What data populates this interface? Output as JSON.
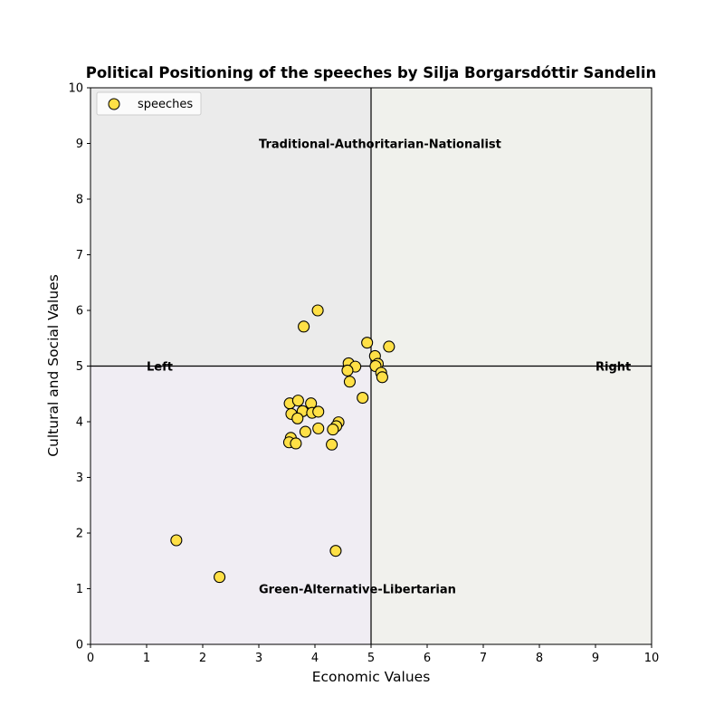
{
  "chart_data": {
    "type": "scatter",
    "title": "Political Positioning of the speeches by Silja Borgarsdóttir Sandelin",
    "xlabel": "Economic Values",
    "ylabel": "Cultural and Social Values",
    "xlim": [
      0,
      10
    ],
    "ylim": [
      0,
      10
    ],
    "xticks": [
      "0",
      "1",
      "2",
      "3",
      "4",
      "5",
      "6",
      "7",
      "8",
      "9",
      "10"
    ],
    "yticks": [
      "0",
      "1",
      "2",
      "3",
      "4",
      "5",
      "6",
      "7",
      "8",
      "9",
      "10"
    ],
    "grid": false,
    "legend_position": "upper-left",
    "quadrant_colors": {
      "top_left": "#ebebeb",
      "top_right": "#f0f1ec",
      "bottom_left": "#f0edf3",
      "bottom_right": "#f1f1ed"
    },
    "marker_color": "#ffe046",
    "marker_edge": "#000000",
    "annotations": [
      {
        "text": "Traditional-Authoritarian-Nationalist",
        "x": 3.0,
        "y": 9.0,
        "align": "left"
      },
      {
        "text": "Green-Alternative-Libertarian",
        "x": 3.0,
        "y": 1.0,
        "align": "left"
      },
      {
        "text": "Left",
        "x": 1.0,
        "y": 5.0,
        "align": "left"
      },
      {
        "text": "Right",
        "x": 9.0,
        "y": 5.0,
        "align": "left"
      }
    ],
    "series": [
      {
        "name": "speeches",
        "points": [
          [
            4.05,
            6.0
          ],
          [
            3.8,
            5.71
          ],
          [
            4.93,
            5.42
          ],
          [
            5.32,
            5.35
          ],
          [
            5.07,
            5.18
          ],
          [
            5.12,
            5.04
          ],
          [
            4.6,
            5.05
          ],
          [
            4.72,
            4.99
          ],
          [
            5.08,
            5.0
          ],
          [
            4.58,
            4.92
          ],
          [
            5.18,
            4.88
          ],
          [
            5.2,
            4.8
          ],
          [
            4.62,
            4.72
          ],
          [
            4.85,
            4.43
          ],
          [
            3.55,
            4.33
          ],
          [
            3.7,
            4.38
          ],
          [
            3.93,
            4.33
          ],
          [
            3.78,
            4.19
          ],
          [
            3.95,
            4.16
          ],
          [
            4.06,
            4.18
          ],
          [
            3.58,
            4.14
          ],
          [
            3.69,
            4.06
          ],
          [
            4.42,
            3.99
          ],
          [
            4.38,
            3.92
          ],
          [
            4.32,
            3.86
          ],
          [
            4.06,
            3.88
          ],
          [
            3.83,
            3.82
          ],
          [
            3.57,
            3.71
          ],
          [
            3.54,
            3.63
          ],
          [
            3.66,
            3.61
          ],
          [
            4.3,
            3.59
          ],
          [
            1.53,
            1.87
          ],
          [
            4.37,
            1.68
          ],
          [
            2.3,
            1.21
          ]
        ]
      }
    ]
  }
}
